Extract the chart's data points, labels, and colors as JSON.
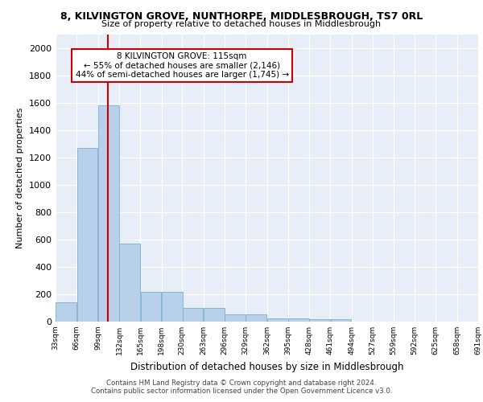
{
  "title": "8, KILVINGTON GROVE, NUNTHORPE, MIDDLESBROUGH, TS7 0RL",
  "subtitle": "Size of property relative to detached houses in Middlesbrough",
  "xlabel": "Distribution of detached houses by size in Middlesbrough",
  "ylabel": "Number of detached properties",
  "bar_color": "#b8d0ea",
  "bar_edge_color": "#7aafd4",
  "background_color": "#e8eef8",
  "grid_color": "#ffffff",
  "bin_edges": [
    33,
    66,
    99,
    132,
    165,
    198,
    230,
    263,
    296,
    329,
    362,
    395,
    428,
    461,
    494,
    527,
    559,
    592,
    625,
    658,
    691
  ],
  "bar_heights": [
    140,
    1270,
    1580,
    570,
    215,
    215,
    100,
    100,
    50,
    50,
    25,
    25,
    20,
    20,
    0,
    0,
    0,
    0,
    0,
    0
  ],
  "property_size": 115,
  "red_line_x": 115,
  "annotation_text": "8 KILVINGTON GROVE: 115sqm\n← 55% of detached houses are smaller (2,146)\n44% of semi-detached houses are larger (1,745) →",
  "annotation_box_color": "#ffffff",
  "annotation_border_color": "#cc0000",
  "ylim": [
    0,
    2100
  ],
  "yticks": [
    0,
    200,
    400,
    600,
    800,
    1000,
    1200,
    1400,
    1600,
    1800,
    2000
  ],
  "footer_line1": "Contains HM Land Registry data © Crown copyright and database right 2024.",
  "footer_line2": "Contains public sector information licensed under the Open Government Licence v3.0."
}
